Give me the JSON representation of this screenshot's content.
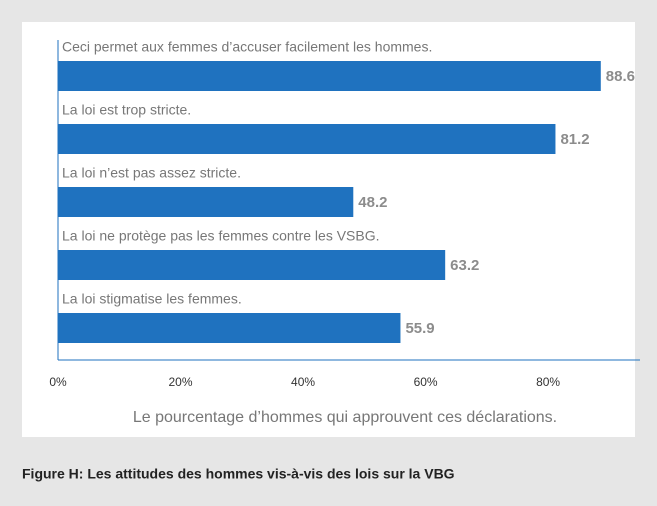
{
  "chart_data": {
    "type": "barh",
    "categories": [
      "Ceci permet aux femmes d’accuser facilement les hommes.",
      "La loi est trop stricte.",
      "La loi n’est pas assez stricte.",
      "La loi ne protège pas les femmes contre les VSBG.",
      "La loi stigmatise les femmes."
    ],
    "values": [
      88.6,
      81.2,
      48.2,
      63.2,
      55.9
    ],
    "color": "#1f72bf",
    "xlabel": "Le pourcentage d’hommes qui approuvent ces déclarations.",
    "xlim": [
      0,
      95
    ],
    "xticks": [
      {
        "value": 0,
        "label": "0%"
      },
      {
        "value": 20,
        "label": "20%"
      },
      {
        "value": 40,
        "label": "40%"
      },
      {
        "value": 60,
        "label": "60%"
      },
      {
        "value": 80,
        "label": "80%"
      }
    ],
    "caption": "Figure H: Les attitudes des hommes vis-à-vis des lois sur la VBG"
  }
}
